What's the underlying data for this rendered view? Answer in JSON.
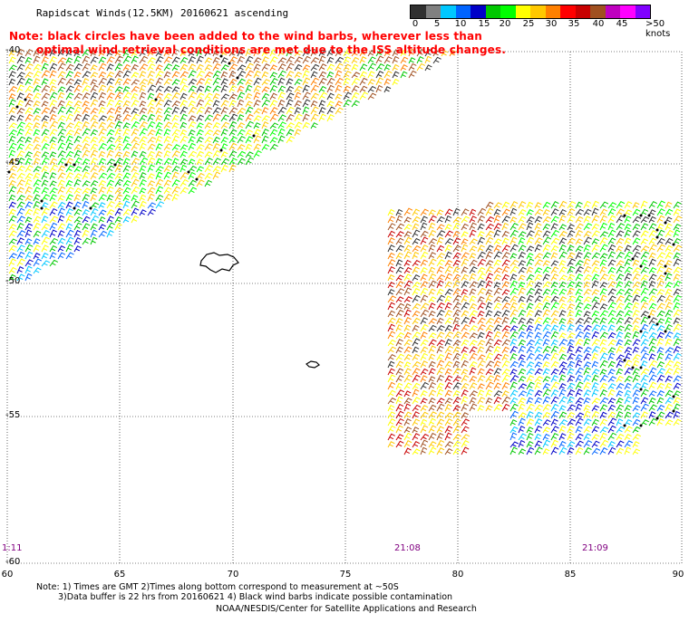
{
  "title": "Rapidscat Winds(12.5KM) 20160621 ascending",
  "note": {
    "line1": "Note: black circles have been added to the wind barbs, wherever less than",
    "line2": "optimal wind retrieval conditions are met due to the ISS altitude changes."
  },
  "speed_scale": {
    "labels": [
      "0",
      "5",
      "10",
      "15",
      "20",
      "25",
      "30",
      "35",
      "40",
      "45",
      ">50 knots"
    ],
    "colors": [
      "#303030",
      "#808080",
      "#00c8ff",
      "#0064ff",
      "#0000c8",
      "#00c800",
      "#00ff00",
      "#ffff00",
      "#ffc800",
      "#ff8000",
      "#ff0000",
      "#c80000",
      "#a05020",
      "#c000c0",
      "#ff00ff",
      "#8000ff"
    ]
  },
  "latitude_labels": [
    "-40",
    "-45",
    "-50",
    "-55",
    "-60"
  ],
  "longitude_labels": [
    "60",
    "65",
    "70",
    "75",
    "80",
    "85",
    "90"
  ],
  "time_labels": [
    "1:11",
    "21:08",
    "21:09"
  ],
  "footer": {
    "line1": "Note: 1) Times are GMT 2)Times along bottom correspond to measurement at ~50S",
    "line2": "3)Data buffer is 22 hrs from 20160621 4) Black wind barbs indicate possible contamination",
    "line3": "NOAA/NESDIS/Center for Satellite Applications and Research"
  },
  "colors": {
    "grid": "#000000",
    "note_text": "#ff0000",
    "time_text": "#800080"
  }
}
